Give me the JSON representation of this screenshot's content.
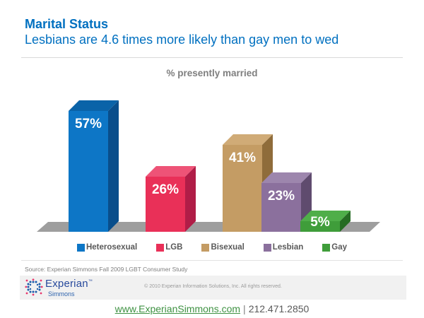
{
  "header": {
    "title": "Marital Status",
    "subtitle": "Lesbians are 4.6 times more likely than gay men to wed",
    "accent_color": "#0070c0"
  },
  "chart_data": {
    "type": "bar",
    "style": "3d",
    "title": "% presently married",
    "categories": [
      "Heterosexual",
      "LGB",
      "Bisexual",
      "Lesbian",
      "Gay"
    ],
    "values": [
      57,
      26,
      41,
      23,
      5
    ],
    "value_labels": [
      "57%",
      "26%",
      "41%",
      "23%",
      "5%"
    ],
    "unit": "%",
    "legend_position": "bottom",
    "grid": false,
    "ylim": [
      0,
      60
    ],
    "bar_colors": [
      {
        "front": "#0d76c6",
        "top": "#0a63a8",
        "side": "#094e8b"
      },
      {
        "front": "#e93058",
        "top": "#ee5377",
        "side": "#b01d47"
      },
      {
        "front": "#c49c64",
        "top": "#d0ab77",
        "side": "#8f6c3a"
      },
      {
        "front": "#8b709d",
        "top": "#9d86ad",
        "side": "#5f4b6e"
      },
      {
        "front": "#3f9d3a",
        "top": "#4fae49",
        "side": "#266c23"
      }
    ],
    "floor_color": "#9e9e9e",
    "label_color": "#ffffff"
  },
  "source": "Source: Experian Simmons Fall 2009 LGBT Consumer Study",
  "footer": {
    "logo": {
      "brand": "Experian",
      "tm": "™",
      "sub": "Simmons"
    },
    "copyright": "© 2010 Experian Information Solutions, Inc.  All rights reserved."
  },
  "contact": {
    "url": "www.ExperianSimmons.com",
    "separator": "|",
    "phone": "212.471.2850"
  }
}
